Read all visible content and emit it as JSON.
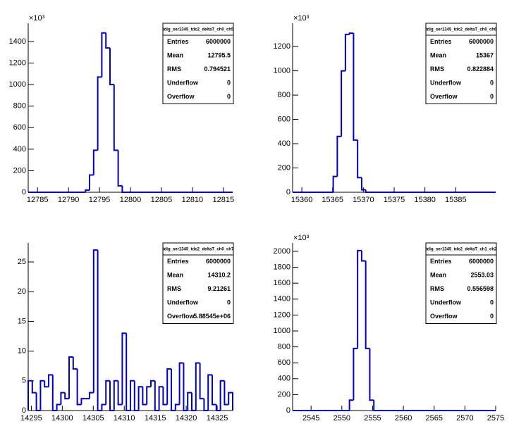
{
  "chart_data": [
    {
      "type": "histogram",
      "title": "tdig_ser1345_tdc2_deltaT_ch0_ch5",
      "y_exponent": "×10³",
      "color": "#0000cc",
      "bins": [
        12783.5,
        12784.16,
        12784.82,
        12785.48,
        12786.14,
        12786.8,
        12787.46,
        12788.12,
        12788.78,
        12789.44,
        12790.1,
        12790.76,
        12791.42,
        12792.08,
        12792.74,
        12793.4,
        12794.06,
        12794.72,
        12795.38,
        12796.04,
        12796.7,
        12797.36,
        12798.02,
        12798.68,
        12799.34,
        12800,
        12800.66,
        12801.32,
        12801.98,
        12802.64,
        12803.3,
        12803.96,
        12804.62,
        12805.28,
        12805.94,
        12806.6,
        12807.26,
        12807.92,
        12808.58,
        12809.24,
        12809.9,
        12810.56,
        12811.22,
        12811.88,
        12812.54,
        12813.2,
        12813.86,
        12814.52,
        12815.18,
        12815.84,
        12816.5
      ],
      "values": [
        0,
        0,
        0,
        0,
        0,
        0,
        0,
        0,
        0,
        0,
        0,
        0,
        0,
        0,
        20,
        160,
        390,
        1070,
        1480,
        1340,
        1000,
        390,
        60,
        0,
        0,
        0,
        0,
        0,
        0,
        0,
        0,
        0,
        0,
        0,
        0,
        0,
        0,
        0,
        0,
        0,
        0,
        0,
        0,
        0,
        0,
        0,
        0,
        0,
        0,
        0
      ],
      "xlim": [
        12783.5,
        12816.5
      ],
      "xticks": [
        12785,
        12790,
        12795,
        12800,
        12805,
        12810,
        12815
      ],
      "ylim": [
        0,
        1570
      ],
      "yticks": [
        0,
        200,
        400,
        600,
        800,
        1000,
        1200,
        1400
      ],
      "stats_labels": [
        "Entries",
        "Mean",
        "RMS",
        "Underflow",
        "Overflow"
      ],
      "stats_values": [
        "6000000",
        "12795.5",
        "0.794521",
        "0",
        "0"
      ]
    },
    {
      "type": "histogram",
      "title": "tdig_ser1345_tdc2_deltaT_ch0_ch6",
      "y_exponent": "×10³",
      "color": "#0000cc",
      "bins": [
        15358.5,
        15359.16,
        15359.82,
        15360.48,
        15361.14,
        15361.8,
        15362.46,
        15363.12,
        15363.78,
        15364.44,
        15365.1,
        15365.76,
        15366.42,
        15367.08,
        15367.74,
        15368.4,
        15369.06,
        15369.72,
        15370.38,
        15371.04,
        15371.7,
        15372.36,
        15373.02,
        15373.68,
        15374.34,
        15375,
        15375.66,
        15376.32,
        15376.98,
        15377.64,
        15378.3,
        15378.96,
        15379.62,
        15380.28,
        15380.94,
        15381.6,
        15382.26,
        15382.92,
        15383.58,
        15384.24,
        15384.9,
        15385.56,
        15386.22,
        15386.88,
        15387.54,
        15388.2,
        15388.86,
        15389.52,
        15390.18,
        15390.84,
        15391.5
      ],
      "values": [
        0,
        0,
        0,
        0,
        0,
        0,
        0,
        0,
        0,
        0,
        130,
        460,
        1000,
        1300,
        1310,
        430,
        120,
        20,
        0,
        0,
        0,
        0,
        0,
        0,
        0,
        0,
        0,
        0,
        0,
        0,
        0,
        0,
        0,
        0,
        0,
        0,
        0,
        0,
        0,
        0,
        0,
        0,
        0,
        0,
        0,
        0,
        0,
        0,
        0,
        0
      ],
      "xlim": [
        15358.5,
        15391.5
      ],
      "xticks": [
        15360,
        15365,
        15370,
        15375,
        15380,
        15385
      ],
      "ylim": [
        0,
        1392
      ],
      "yticks": [
        0,
        200,
        400,
        600,
        800,
        1000,
        1200
      ],
      "stats_labels": [
        "Entries",
        "Mean",
        "RMS",
        "Underflow",
        "Overflow"
      ],
      "stats_values": [
        "6000000",
        "15367",
        "0.822884",
        "0",
        "0"
      ]
    },
    {
      "type": "histogram",
      "title": "tdig_ser1345_tdc2_deltaT_ch0_ch7",
      "color": "#0000cc",
      "bins": [
        14294.5,
        14295.16,
        14295.82,
        14296.48,
        14297.14,
        14297.8,
        14298.46,
        14299.12,
        14299.78,
        14300.44,
        14301.1,
        14301.76,
        14302.42,
        14303.08,
        14303.74,
        14304.4,
        14305.06,
        14305.72,
        14306.38,
        14307.04,
        14307.7,
        14308.36,
        14309.02,
        14309.68,
        14310.34,
        14311,
        14311.66,
        14312.32,
        14312.98,
        14313.64,
        14314.3,
        14314.96,
        14315.62,
        14316.28,
        14316.94,
        14317.6,
        14318.26,
        14318.92,
        14319.58,
        14320.24,
        14320.9,
        14321.56,
        14322.22,
        14322.88,
        14323.54,
        14324.2,
        14324.86,
        14325.52,
        14326.18,
        14326.84,
        14327.5
      ],
      "values": [
        5,
        3,
        0,
        5,
        4,
        6,
        0,
        1,
        3,
        2,
        9,
        7,
        1,
        2,
        2,
        3,
        27,
        0,
        1,
        5,
        0,
        5,
        1,
        13,
        0,
        5,
        0,
        4,
        1,
        4,
        5,
        0,
        4,
        1,
        7,
        0,
        1,
        8,
        0,
        3,
        0,
        8,
        2,
        0,
        6,
        1,
        0,
        5,
        1,
        3
      ],
      "xlim": [
        14294.5,
        14327.5
      ],
      "xticks": [
        14295,
        14300,
        14305,
        14310,
        14315,
        14320,
        14325
      ],
      "ylim": [
        0,
        28.2
      ],
      "yticks": [
        0,
        5,
        10,
        15,
        20,
        25
      ],
      "stats_labels": [
        "Entries",
        "Mean",
        "RMS",
        "Underflow",
        "Overflow"
      ],
      "stats_values": [
        "6000000",
        "14310.2",
        "9.21261",
        "0",
        "5.88545e+06"
      ]
    },
    {
      "type": "histogram",
      "title": "tdig_ser1345_tdc2_deltaT_ch1_ch2",
      "y_exponent": "×10³",
      "color": "#0000cc",
      "bins": [
        2542,
        2542.66,
        2543.32,
        2543.98,
        2544.64,
        2545.3,
        2545.96,
        2546.62,
        2547.28,
        2547.94,
        2548.6,
        2549.26,
        2549.92,
        2550.58,
        2551.24,
        2551.9,
        2552.56,
        2553.22,
        2553.88,
        2554.54,
        2555.2,
        2555.86,
        2556.52,
        2557.18,
        2557.84,
        2558.5,
        2559.16,
        2559.82,
        2560.48,
        2561.14,
        2561.8,
        2562.46,
        2563.12,
        2563.78,
        2564.44,
        2565.1,
        2565.76,
        2566.42,
        2567.08,
        2567.74,
        2568.4,
        2569.06,
        2569.72,
        2570.38,
        2571.04,
        2571.7,
        2572.36,
        2573.02,
        2573.68,
        2574.34,
        2575
      ],
      "values": [
        0,
        0,
        0,
        0,
        0,
        0,
        0,
        0,
        0,
        0,
        0,
        0,
        0,
        0,
        130,
        780,
        2010,
        1880,
        780,
        130,
        0,
        0,
        0,
        0,
        0,
        0,
        0,
        0,
        0,
        0,
        0,
        0,
        0,
        0,
        0,
        0,
        0,
        0,
        0,
        0,
        0,
        0,
        0,
        0,
        0,
        0,
        0,
        0,
        0,
        0
      ],
      "xlim": [
        2542,
        2575
      ],
      "xticks": [
        2545,
        2550,
        2555,
        2560,
        2565,
        2570,
        2575
      ],
      "ylim": [
        0,
        2106
      ],
      "yticks": [
        0,
        200,
        400,
        600,
        800,
        1000,
        1200,
        1400,
        1600,
        1800,
        2000
      ],
      "stats_labels": [
        "Entries",
        "Mean",
        "RMS",
        "Underflow",
        "Overflow"
      ],
      "stats_values": [
        "6000000",
        "2553.03",
        "0.556598",
        "0",
        "0"
      ]
    }
  ]
}
